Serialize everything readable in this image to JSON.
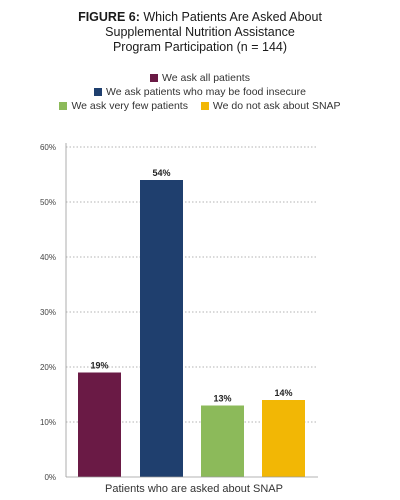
{
  "title": {
    "lead": "FIGURE 6:",
    "rest": "Which Patients Are Asked About",
    "line2": "Supplemental Nutrition Assistance",
    "line3": "Program Participation (n = 144)"
  },
  "chart_data": {
    "type": "bar",
    "categories": [
      "We ask all patients",
      "We ask patients who may be food insecure",
      "We ask very few patients",
      "We do not ask about SNAP"
    ],
    "values": [
      19,
      54,
      13,
      14
    ],
    "data_labels": [
      "19%",
      "54%",
      "13%",
      "14%"
    ],
    "colors": [
      "#6a1a45",
      "#1f3f6e",
      "#8cba5a",
      "#f2b705"
    ],
    "xlabel": "Patients who are asked about SNAP",
    "ylabel": "",
    "ylim": [
      0,
      60
    ],
    "yticks": [
      0,
      10,
      20,
      30,
      40,
      50,
      60
    ],
    "ytick_labels": [
      "0%",
      "10%",
      "20%",
      "30%",
      "40%",
      "50%",
      "60%"
    ],
    "grid": "horizontal dotted",
    "legend_position": "top"
  },
  "legend": [
    {
      "label": "We ask all patients",
      "color": "#6a1a45"
    },
    {
      "label": "We ask patients who may be food insecure",
      "color": "#1f3f6e"
    },
    {
      "label": "We ask very few patients",
      "color": "#8cba5a"
    },
    {
      "label": "We do not ask about SNAP",
      "color": "#f2b705"
    }
  ]
}
